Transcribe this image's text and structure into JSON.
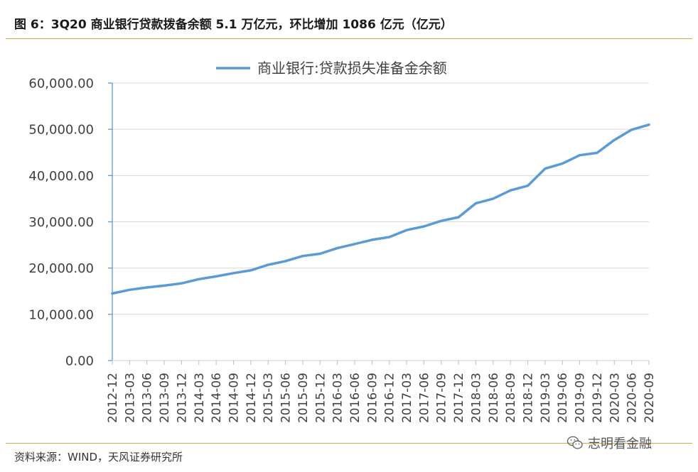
{
  "figure": {
    "title": "图 6：3Q20 商业银行贷款拨备余额 5.1 万亿元，环比增加 1086 亿元（亿元）",
    "source": "资料来源：WIND，天风证券研究所",
    "watermark": "志明看金融",
    "watermark_icon": "wechat-icon",
    "accent_color": "#d4a64c"
  },
  "chart_data": {
    "type": "line",
    "title": "",
    "xlabel": "",
    "ylabel": "",
    "ylim": [
      0,
      60000
    ],
    "yticks": [
      "0.00",
      "10,000.00",
      "20,000.00",
      "30,000.00",
      "40,000.00",
      "50,000.00",
      "60,000.00"
    ],
    "grid": true,
    "legend_position": "top-center",
    "categories": [
      "2012-12",
      "2013-03",
      "2013-06",
      "2013-09",
      "2013-12",
      "2014-03",
      "2014-06",
      "2014-09",
      "2014-12",
      "2015-03",
      "2015-06",
      "2015-09",
      "2015-12",
      "2016-03",
      "2016-06",
      "2016-09",
      "2016-12",
      "2017-03",
      "2017-06",
      "2017-09",
      "2017-12",
      "2018-03",
      "2018-06",
      "2018-09",
      "2018-12",
      "2019-03",
      "2019-06",
      "2019-09",
      "2019-12",
      "2020-03",
      "2020-06",
      "2020-09"
    ],
    "series": [
      {
        "name": "商业银行:贷款损失准备金余额",
        "color": "#5b9bd5",
        "values": [
          14500,
          15300,
          15800,
          16200,
          16700,
          17600,
          18200,
          18900,
          19500,
          20700,
          21500,
          22600,
          23100,
          24300,
          25200,
          26100,
          26700,
          28200,
          29000,
          30200,
          31000,
          34000,
          35000,
          36800,
          37800,
          41500,
          42600,
          44400,
          44900,
          47700,
          49900,
          51000
        ]
      }
    ]
  }
}
